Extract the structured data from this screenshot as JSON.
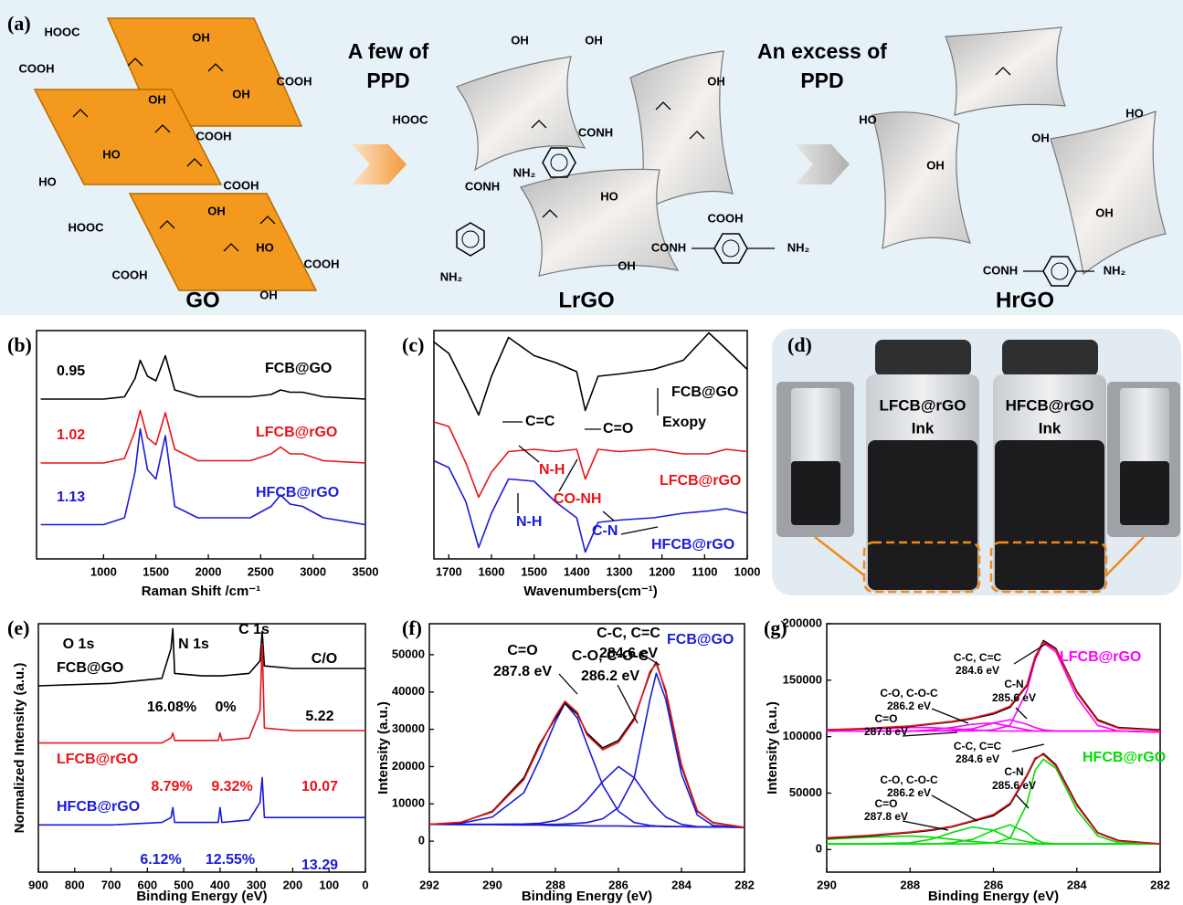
{
  "panel_a": {
    "texts": [
      "(a)",
      "HOOC",
      "OH",
      "COOH",
      "COOH",
      "OH",
      "OH",
      "COOH",
      "HO",
      "HO",
      "COOH",
      "OH",
      "HOOC",
      "HO",
      "COOH",
      "COOH",
      "OH",
      "GO",
      "A few of",
      "PPD",
      "OH",
      "OH",
      "HOOC",
      "CONH",
      "OH",
      "NH₂",
      "CONH",
      "HO",
      "COOH",
      "CONH",
      "NH₂",
      "OH",
      "NH₂",
      "LrGO",
      "An excess of",
      "PPD",
      "HO",
      "HO",
      "OH",
      "OH",
      "OH",
      "CONH",
      "NH₂",
      "HrGO"
    ]
  },
  "panel_d": {
    "label": "(d)",
    "inks": [
      {
        "name": "LFCB@rGO",
        "text": "Ink"
      },
      {
        "name": "HFCB@rGO",
        "text": "Ink"
      }
    ]
  },
  "chart_data": [
    {
      "type": "line",
      "panel": "(b)",
      "xlabel": "Raman  Shift /cm⁻¹",
      "xlim": [
        360,
        3500
      ],
      "xticks": [
        1000,
        1500,
        2000,
        2500,
        3000,
        3500
      ],
      "ylim": [
        0,
        10
      ],
      "x": [
        400,
        1000,
        1200,
        1300,
        1350,
        1420,
        1500,
        1590,
        1680,
        1900,
        2400,
        2600,
        2690,
        2780,
        2900,
        3100,
        3500
      ],
      "series": [
        {
          "color": "#000000",
          "values": [
            7.0,
            7.0,
            7.1,
            7.9,
            8.7,
            8.0,
            7.8,
            8.9,
            7.4,
            7.1,
            7.1,
            7.2,
            7.4,
            7.3,
            7.3,
            7.1,
            7.0
          ]
        },
        {
          "color": "#e8141a",
          "values": [
            4.2,
            4.2,
            4.4,
            5.6,
            6.5,
            5.3,
            5.0,
            6.4,
            4.8,
            4.3,
            4.3,
            4.6,
            4.9,
            4.6,
            4.6,
            4.3,
            4.2
          ]
        },
        {
          "color": "#1a1adc",
          "values": [
            1.5,
            1.5,
            1.8,
            3.8,
            5.7,
            3.9,
            3.5,
            5.4,
            2.3,
            1.8,
            1.8,
            2.3,
            2.8,
            2.4,
            2.3,
            1.8,
            1.5
          ]
        }
      ],
      "annotations": [
        {
          "text": "0.95",
          "color": "#000000"
        },
        {
          "text": "FCB@GO",
          "color": "#000000"
        },
        {
          "text": "1.02",
          "color": "#e8141a"
        },
        {
          "text": "LFCB@rGO",
          "color": "#e8141a"
        },
        {
          "text": "1.13",
          "color": "#1a1adc"
        },
        {
          "text": "HFCB@rGO",
          "color": "#1a1adc"
        }
      ]
    },
    {
      "type": "line",
      "panel": "(c)",
      "xlabel": "Wavenumbers(cm⁻¹)",
      "xlim": [
        1735,
        1000
      ],
      "xticks": [
        1700,
        1600,
        1500,
        1400,
        1300,
        1200,
        1100,
        1000
      ],
      "ylim": [
        0,
        10
      ],
      "x": [
        1735,
        1700,
        1660,
        1630,
        1600,
        1560,
        1500,
        1450,
        1400,
        1380,
        1350,
        1300,
        1220,
        1150,
        1090,
        1050,
        1000
      ],
      "series": [
        {
          "color": "#000000",
          "values": [
            9.5,
            9.0,
            7.5,
            6.3,
            8.0,
            9.7,
            8.9,
            8.6,
            8.2,
            6.5,
            8.0,
            8.1,
            8.3,
            8.7,
            9.9,
            9.2,
            8.3
          ]
        },
        {
          "color": "#e8141a",
          "values": [
            6.0,
            5.8,
            4.2,
            2.7,
            3.8,
            4.7,
            4.8,
            4.7,
            4.8,
            3.5,
            4.8,
            4.7,
            4.8,
            4.6,
            4.6,
            4.8,
            4.7
          ]
        },
        {
          "color": "#1a1adc",
          "values": [
            4.3,
            4.0,
            2.5,
            0.5,
            2.0,
            3.5,
            3.4,
            2.5,
            1.8,
            0.3,
            1.6,
            1.7,
            1.8,
            2.0,
            2.1,
            2.2,
            2.0
          ]
        }
      ],
      "annotations": [
        {
          "text": "FCB@GO",
          "color": "#000000"
        },
        {
          "text": "C=C",
          "color": "#000000"
        },
        {
          "text": "C=O",
          "color": "#000000"
        },
        {
          "text": "Exopy",
          "color": "#000000"
        },
        {
          "text": "N-H",
          "color": "#e8141a"
        },
        {
          "text": "CO-NH",
          "color": "#e8141a"
        },
        {
          "text": "LFCB@rGO",
          "color": "#e8141a"
        },
        {
          "text": "N-H",
          "color": "#1a1adc"
        },
        {
          "text": "C-N",
          "color": "#1a1adc"
        },
        {
          "text": "HFCB@rGO",
          "color": "#1a1adc"
        }
      ]
    },
    {
      "type": "line",
      "panel": "(e)",
      "xlabel": "Binding Energy (eV)",
      "ylabel": "Normalized Intensity (a.u.)",
      "xlim": [
        900,
        0
      ],
      "xticks": [
        900,
        800,
        700,
        600,
        500,
        400,
        300,
        200,
        100,
        0
      ],
      "ylim": [
        0,
        10
      ],
      "x": [
        900,
        700,
        560,
        535,
        530,
        525,
        450,
        405,
        400,
        395,
        320,
        290,
        284,
        278,
        200,
        0
      ],
      "series": [
        {
          "color": "#000000",
          "values": [
            7.5,
            7.6,
            7.8,
            9.0,
            9.8,
            8.0,
            7.9,
            7.9,
            7.9,
            7.9,
            8.0,
            8.5,
            9.7,
            8.3,
            8.2,
            8.2
          ]
        },
        {
          "color": "#e8141a",
          "values": [
            5.2,
            5.2,
            5.2,
            5.4,
            5.6,
            5.3,
            5.3,
            5.3,
            5.6,
            5.3,
            5.4,
            6.5,
            9.2,
            5.8,
            5.7,
            5.7
          ]
        },
        {
          "color": "#1a1adc",
          "values": [
            1.9,
            1.9,
            2.0,
            2.2,
            2.6,
            2.0,
            2.0,
            2.0,
            2.6,
            2.0,
            2.1,
            2.8,
            3.8,
            2.2,
            2.2,
            2.2
          ]
        }
      ],
      "annotations": [
        {
          "text": "O 1s",
          "color": "#000000"
        },
        {
          "text": "N 1s",
          "color": "#000000"
        },
        {
          "text": "C 1s",
          "color": "#000000"
        },
        {
          "text": "C/O",
          "color": "#000000"
        },
        {
          "text": "FCB@GO",
          "color": "#000000"
        },
        {
          "text": "16.08%",
          "color": "#000000"
        },
        {
          "text": "0%",
          "color": "#000000"
        },
        {
          "text": "5.22",
          "color": "#000000"
        },
        {
          "text": "LFCB@rGO",
          "color": "#e8141a"
        },
        {
          "text": "8.79%",
          "color": "#e8141a"
        },
        {
          "text": "9.32%",
          "color": "#e8141a"
        },
        {
          "text": "10.07",
          "color": "#e8141a"
        },
        {
          "text": "HFCB@rGO",
          "color": "#1a1adc"
        },
        {
          "text": "6.12%",
          "color": "#1a1adc"
        },
        {
          "text": "12.55%",
          "color": "#1a1adc"
        },
        {
          "text": "13.29",
          "color": "#1a1adc"
        }
      ]
    },
    {
      "type": "line",
      "panel": "(f)",
      "xlabel": "Binding Energy (eV)",
      "ylabel": "Intensity (a.u.)",
      "xlim": [
        292,
        282
      ],
      "xticks": [
        292,
        290,
        288,
        286,
        284,
        282
      ],
      "ylim": [
        -8300,
        58300
      ],
      "yticks": [
        0,
        10000,
        20000,
        30000,
        40000,
        50000
      ],
      "x": [
        292,
        291,
        290,
        289,
        288.5,
        288,
        287.7,
        287.3,
        287,
        286.5,
        286,
        285.5,
        285,
        284.8,
        284.5,
        284,
        283.5,
        283,
        282
      ],
      "series": [
        {
          "color": "#1a1adc",
          "values": [
            4500,
            4400,
            4400,
            4300,
            4300,
            4200,
            4200,
            4200,
            4100,
            4100,
            4100,
            4000,
            4000,
            4000,
            3900,
            3900,
            3800,
            3800,
            3700
          ]
        },
        {
          "color": "#1a1adc",
          "values": [
            4500,
            4800,
            6500,
            13000,
            22000,
            32000,
            37000,
            33000,
            26000,
            15000,
            8000,
            5000,
            4200,
            4100,
            4000,
            3900,
            3800,
            3800,
            3700
          ]
        },
        {
          "color": "#1a1adc",
          "values": [
            4500,
            4500,
            4500,
            4600,
            4800,
            5500,
            6500,
            8500,
            11000,
            16000,
            20000,
            17000,
            11000,
            9000,
            6500,
            4500,
            3900,
            3800,
            3700
          ]
        },
        {
          "color": "#1a1adc",
          "values": [
            4500,
            4500,
            4500,
            4500,
            4500,
            4500,
            4600,
            4800,
            5000,
            6000,
            9000,
            17000,
            38000,
            45000,
            38000,
            18000,
            7000,
            4200,
            3700
          ]
        },
        {
          "color": "#000000",
          "values": [
            4500,
            5000,
            8000,
            17000,
            26000,
            33000,
            37000,
            34000,
            29000,
            25000,
            27000,
            33000,
            45000,
            48000,
            40000,
            20000,
            8000,
            5000,
            3700
          ]
        },
        {
          "color": "#e8141a",
          "values": [
            4500,
            5100,
            7800,
            16500,
            25500,
            33500,
            37500,
            34500,
            28500,
            24500,
            26500,
            32500,
            45500,
            47500,
            40500,
            20500,
            8200,
            4900,
            3700
          ]
        }
      ],
      "annotations": [
        {
          "text": "FCB@GO",
          "color": "#1a1adc"
        },
        {
          "text": "C=O",
          "color": "#000000"
        },
        {
          "text": "287.8 eV",
          "color": "#000000"
        },
        {
          "text": "C-O, C-O-C",
          "color": "#000000"
        },
        {
          "text": "286.2 eV",
          "color": "#000000"
        },
        {
          "text": "C-C, C=C",
          "color": "#000000"
        },
        {
          "text": "284.6 eV",
          "color": "#000000"
        }
      ]
    },
    {
      "type": "line",
      "panel": "(g)",
      "xlabel": "Binding Energy (eV)",
      "ylabel": "Intensity (a.u.)",
      "xlim": [
        290,
        282
      ],
      "xticks": [
        290,
        288,
        286,
        284,
        282
      ],
      "ylim": [
        -20000,
        200000
      ],
      "yticks": [
        0,
        50000,
        100000,
        150000,
        200000
      ],
      "x": [
        290,
        289,
        288,
        287.5,
        287,
        286.5,
        286,
        285.6,
        285.2,
        285,
        284.8,
        284.5,
        284,
        283.5,
        283,
        282
      ],
      "series": [
        {
          "color": "#ff00ff",
          "values": [
            105000,
            105000,
            105000,
            105000,
            105000,
            105000,
            106000,
            110000,
            140000,
            168000,
            183000,
            175000,
            135000,
            110000,
            105000,
            104000
          ]
        },
        {
          "color": "#ff00ff",
          "values": [
            105000,
            105000,
            105000,
            105000,
            105500,
            107000,
            112000,
            115000,
            111000,
            108000,
            106000,
            105000,
            105000,
            105000,
            105000,
            104000
          ]
        },
        {
          "color": "#ff00ff",
          "values": [
            105000,
            105000,
            105000,
            106000,
            108000,
            111000,
            112000,
            109000,
            106000,
            105000,
            105000,
            105000,
            105000,
            105000,
            105000,
            104000
          ]
        },
        {
          "color": "#ff00ff",
          "values": [
            106000,
            107000,
            108000,
            108000,
            107000,
            106000,
            105000,
            105000,
            105000,
            105000,
            105000,
            105000,
            105000,
            105000,
            105000,
            104000
          ]
        },
        {
          "color": "#000000",
          "values": [
            106000,
            107000,
            109000,
            111000,
            113000,
            116000,
            120000,
            126000,
            145000,
            170000,
            185000,
            178000,
            140000,
            115000,
            108000,
            106000
          ]
        },
        {
          "color": "#e8141a",
          "values": [
            106000,
            107500,
            109500,
            111500,
            113500,
            116500,
            121000,
            127000,
            146000,
            171000,
            184000,
            177000,
            139000,
            114000,
            107500,
            105500
          ]
        },
        {
          "color": "#00dd00",
          "values": [
            5000,
            5000,
            5000,
            5000,
            5000,
            5000,
            6000,
            10000,
            40000,
            70000,
            80000,
            72000,
            35000,
            12000,
            6000,
            5000
          ]
        },
        {
          "color": "#00dd00",
          "values": [
            5000,
            5000,
            5000,
            5000,
            6000,
            9000,
            17000,
            22000,
            15000,
            9000,
            6000,
            5000,
            5000,
            5000,
            5000,
            5000
          ]
        },
        {
          "color": "#00dd00",
          "values": [
            5000,
            5000,
            6000,
            9000,
            15000,
            20000,
            17000,
            10000,
            7000,
            6000,
            5000,
            5000,
            5000,
            5000,
            5000,
            5000
          ]
        },
        {
          "color": "#00dd00",
          "values": [
            9000,
            11000,
            12000,
            11000,
            9000,
            7000,
            6000,
            5000,
            5000,
            5000,
            5000,
            5000,
            5000,
            5000,
            5000,
            5000
          ]
        },
        {
          "color": "#000000",
          "values": [
            10000,
            12000,
            15000,
            17000,
            20000,
            25000,
            30000,
            40000,
            65000,
            80000,
            85000,
            75000,
            40000,
            15000,
            8000,
            5000
          ]
        },
        {
          "color": "#e8141a",
          "values": [
            10500,
            12500,
            15500,
            17500,
            20500,
            25500,
            31000,
            41000,
            66000,
            81000,
            84000,
            74000,
            39000,
            14500,
            7500,
            5000
          ]
        }
      ],
      "annotations": [
        {
          "text": "LFCB@rGO",
          "color": "#ff00ff"
        },
        {
          "text": "C-C, C=C",
          "color": "#000000"
        },
        {
          "text": "284.6 eV",
          "color": "#000000"
        },
        {
          "text": "C-O, C-O-C",
          "color": "#000000"
        },
        {
          "text": "286.2 eV",
          "color": "#000000"
        },
        {
          "text": "C-N",
          "color": "#000000"
        },
        {
          "text": "285.6 eV",
          "color": "#000000"
        },
        {
          "text": "C=O",
          "color": "#000000"
        },
        {
          "text": "287.8 eV",
          "color": "#000000"
        },
        {
          "text": "HFCB@rGO",
          "color": "#00dd00"
        },
        {
          "text": "C-C, C=C",
          "color": "#000000"
        },
        {
          "text": "284.6 eV",
          "color": "#000000"
        },
        {
          "text": "C-O, C-O-C",
          "color": "#000000"
        },
        {
          "text": "286.2 eV",
          "color": "#000000"
        },
        {
          "text": "C-N",
          "color": "#000000"
        },
        {
          "text": "285.6 eV",
          "color": "#000000"
        },
        {
          "text": "C=O",
          "color": "#000000"
        },
        {
          "text": "287.8 eV",
          "color": "#000000"
        }
      ]
    }
  ]
}
